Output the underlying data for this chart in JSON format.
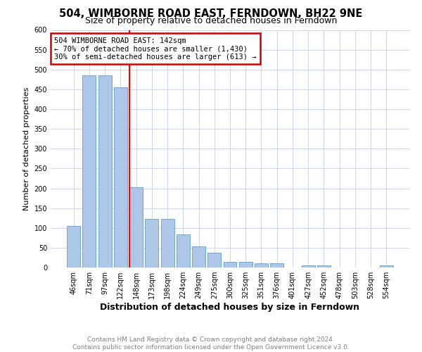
{
  "title": "504, WIMBORNE ROAD EAST, FERNDOWN, BH22 9NE",
  "subtitle": "Size of property relative to detached houses in Ferndown",
  "xlabel": "Distribution of detached houses by size in Ferndown",
  "ylabel": "Number of detached properties",
  "categories": [
    "46sqm",
    "71sqm",
    "97sqm",
    "122sqm",
    "148sqm",
    "173sqm",
    "198sqm",
    "224sqm",
    "249sqm",
    "275sqm",
    "300sqm",
    "325sqm",
    "351sqm",
    "376sqm",
    "401sqm",
    "427sqm",
    "452sqm",
    "478sqm",
    "503sqm",
    "528sqm",
    "554sqm"
  ],
  "values": [
    105,
    485,
    485,
    455,
    202,
    122,
    122,
    84,
    54,
    38,
    15,
    15,
    10,
    10,
    0,
    5,
    5,
    0,
    0,
    0,
    6
  ],
  "bar_color": "#aec6e8",
  "bar_edge_color": "#5a9fd4",
  "red_line_index": 4,
  "red_line_label": "504 WIMBORNE ROAD EAST: 142sqm",
  "annotation_line1": "← 70% of detached houses are smaller (1,430)",
  "annotation_line2": "30% of semi-detached houses are larger (613) →",
  "annotation_box_color": "#ffffff",
  "annotation_box_edge": "#cc0000",
  "ylim": [
    0,
    600
  ],
  "yticks": [
    0,
    50,
    100,
    150,
    200,
    250,
    300,
    350,
    400,
    450,
    500,
    550,
    600
  ],
  "footer_line1": "Contains HM Land Registry data © Crown copyright and database right 2024.",
  "footer_line2": "Contains public sector information licensed under the Open Government Licence v3.0.",
  "background_color": "#ffffff",
  "grid_color": "#d0d8e8",
  "title_fontsize": 10.5,
  "subtitle_fontsize": 9,
  "ylabel_fontsize": 8,
  "xlabel_fontsize": 9,
  "tick_fontsize": 7,
  "footer_fontsize": 6.5,
  "annotation_fontsize": 7.5
}
